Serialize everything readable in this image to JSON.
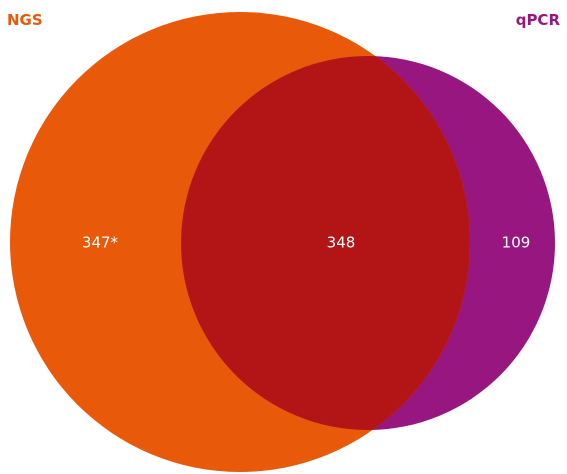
{
  "venn": {
    "sets": [
      {
        "name": "NGS",
        "color": "#E85A0A"
      },
      {
        "name": "qPCR",
        "color": "#97167F"
      }
    ],
    "overlap_color": "#B31517",
    "regions": {
      "ngs_only": "347*",
      "intersection": "348",
      "qpcr_only": "109"
    }
  }
}
